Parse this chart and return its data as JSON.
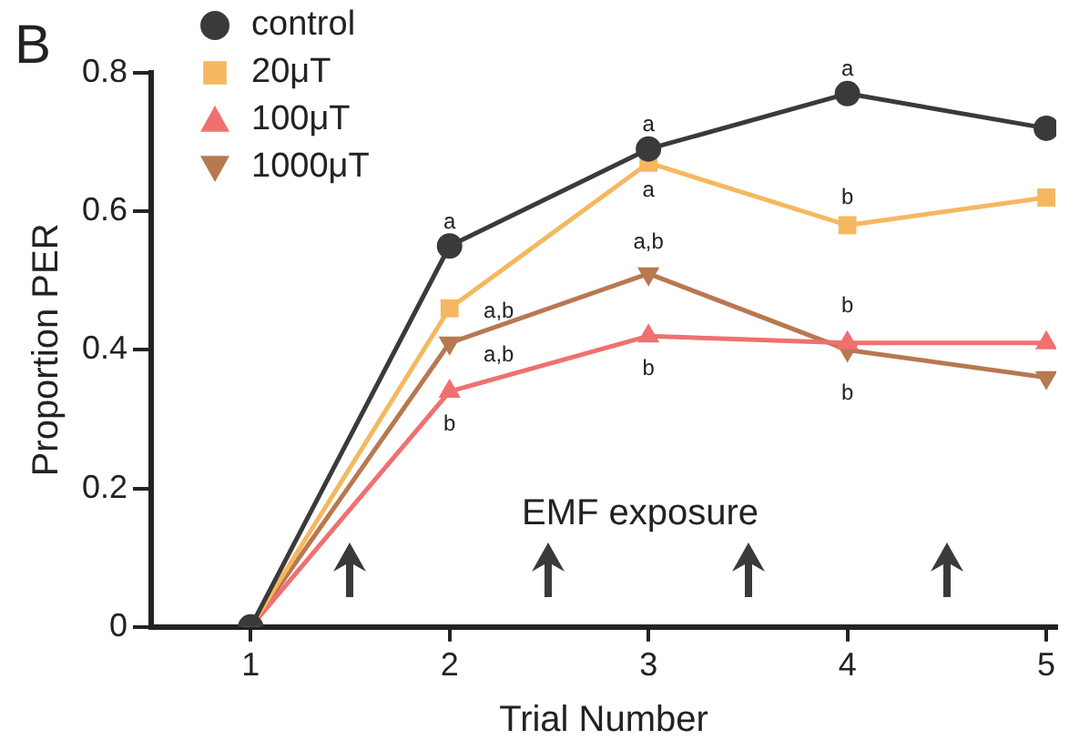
{
  "chart_data": {
    "type": "line",
    "xlabel": "Trial Number",
    "ylabel": "Proportion PER",
    "x": [
      1,
      2,
      3,
      4,
      5
    ],
    "xlim": [
      0.5,
      5.05
    ],
    "xticks": [
      1,
      2,
      3,
      4,
      5
    ],
    "ylim": [
      0,
      0.8
    ],
    "yticks": [
      0,
      0.2,
      0.4,
      0.6,
      0.8
    ],
    "grid": false,
    "legend": "top left",
    "line_style": "solid",
    "series": [
      {
        "name": "control",
        "color": "#3a3a3a",
        "marker": "circle",
        "values": [
          0,
          0.55,
          0.69,
          0.77,
          0.72
        ]
      },
      {
        "name": "20μT",
        "color": "#f5b860",
        "marker": "square",
        "values": [
          0,
          0.46,
          0.67,
          0.58,
          0.62
        ]
      },
      {
        "name": "100μT",
        "color": "#f07070",
        "marker": "triangle",
        "values": [
          0,
          0.34,
          0.42,
          0.41,
          0.41
        ]
      },
      {
        "name": "1000μT",
        "color": "#b87850",
        "marker": "triangle-down",
        "values": [
          0,
          0.41,
          0.51,
          0.4,
          0.36
        ]
      }
    ],
    "annotations": [
      "B",
      "EMF exposure",
      {
        "text": "a",
        "x": 2,
        "y": 0.55
      },
      {
        "text": "a",
        "x": 3,
        "y": 0.69
      },
      {
        "text": "a",
        "x": 4,
        "y": 0.77
      },
      {
        "text": "a,b",
        "x": 2,
        "y": 0.46
      },
      {
        "text": "a",
        "x": 3,
        "y": 0.67
      },
      {
        "text": "b",
        "x": 4,
        "y": 0.58
      },
      {
        "text": "a,b",
        "x": 3,
        "y": 0.51
      },
      {
        "text": "a,b",
        "x": 2,
        "y": 0.41
      },
      {
        "text": "b",
        "x": 2,
        "y": 0.34
      },
      {
        "text": "b",
        "x": 3,
        "y": 0.42
      },
      {
        "text": "b",
        "x": 4,
        "y": 0.41
      },
      {
        "text": "b",
        "x": 4,
        "y": 0.4
      }
    ]
  }
}
